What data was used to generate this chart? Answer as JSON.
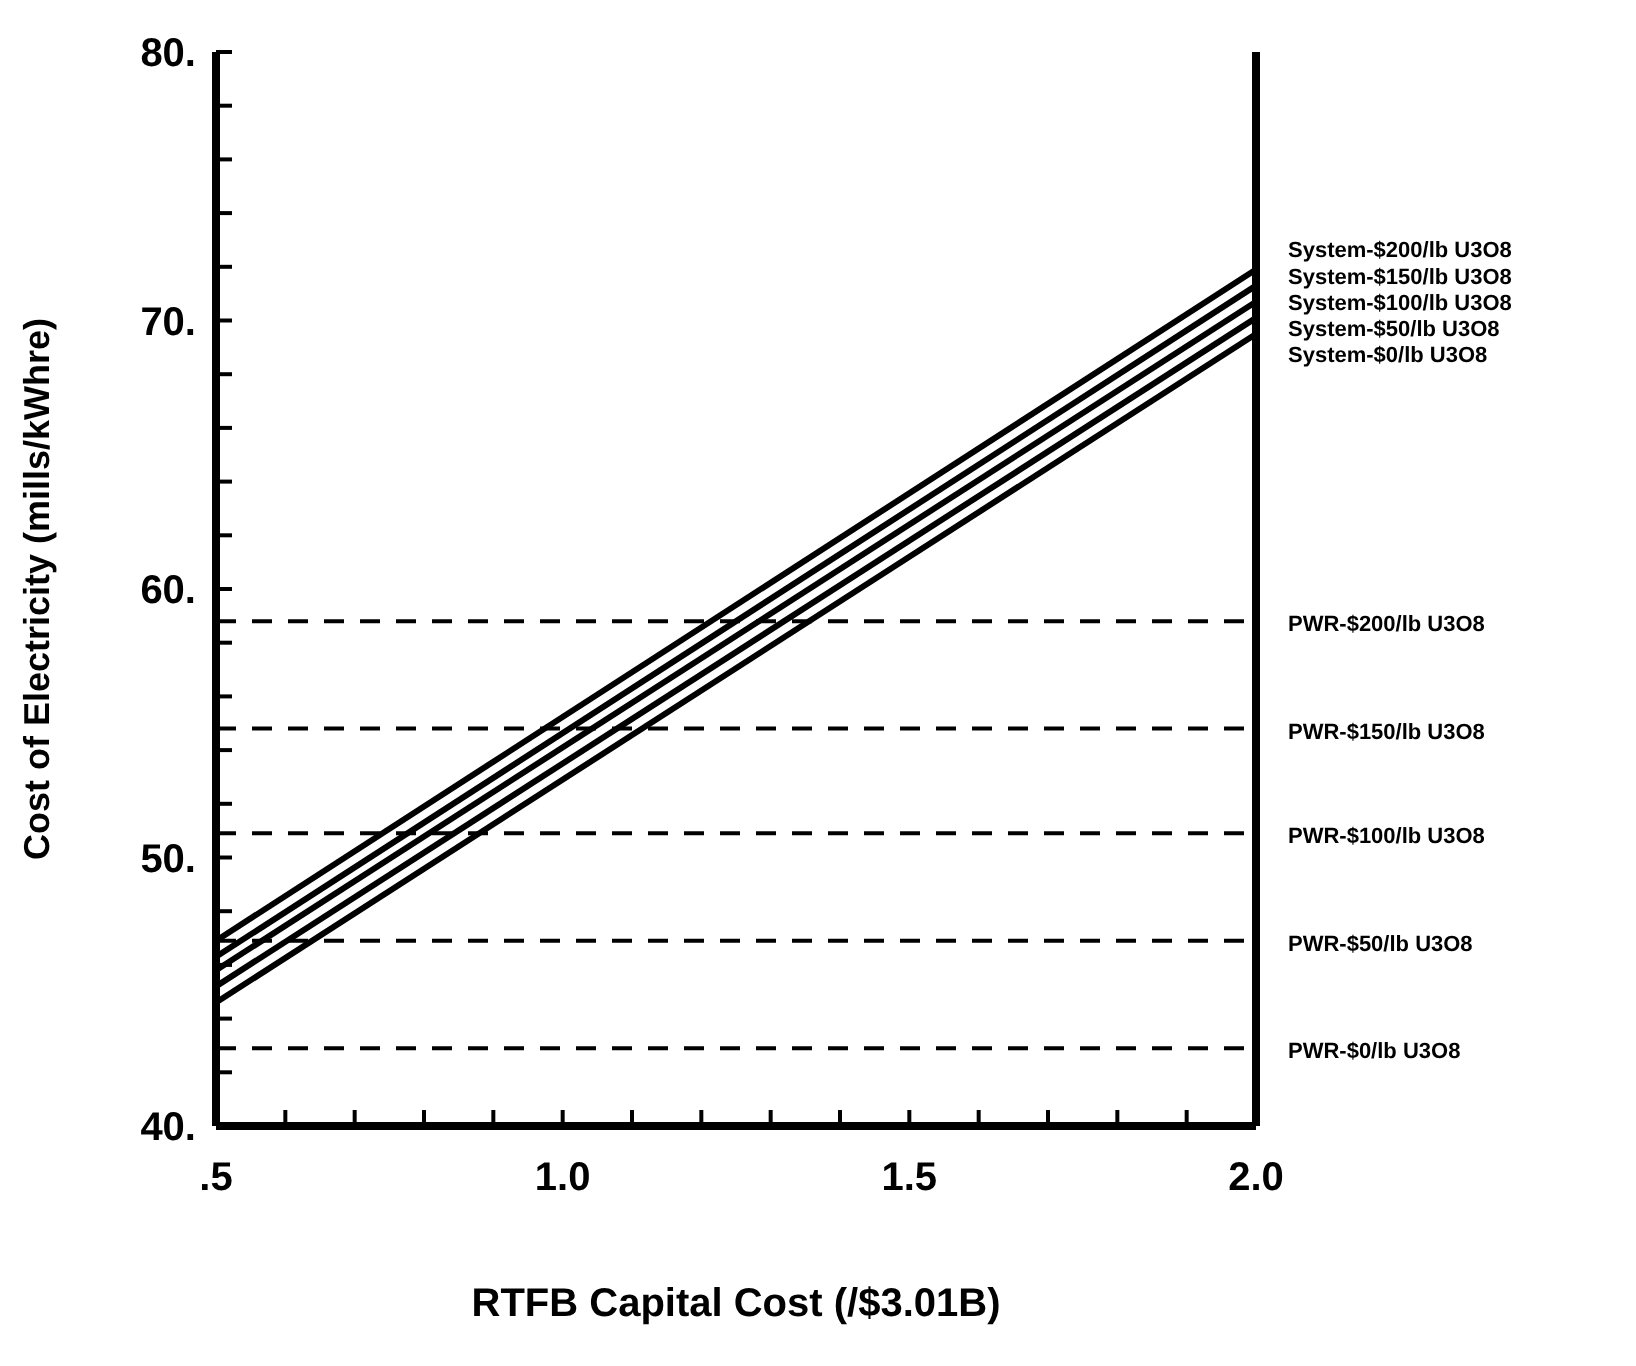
{
  "chart_data": {
    "type": "line",
    "xlabel": "RTFB Capital Cost (/$3.01B)",
    "ylabel": "Cost of Electricity (mills/kWhre)",
    "xlim": [
      0.5,
      2.0
    ],
    "xticks": [
      {
        "value": 0.5,
        "label": ".5"
      },
      {
        "value": 0.6,
        "label": null
      },
      {
        "value": 0.7,
        "label": null
      },
      {
        "value": 0.8,
        "label": null
      },
      {
        "value": 0.9,
        "label": null
      },
      {
        "value": 1.0,
        "label": "1.0"
      },
      {
        "value": 1.1,
        "label": null
      },
      {
        "value": 1.2,
        "label": null
      },
      {
        "value": 1.3,
        "label": null
      },
      {
        "value": 1.4,
        "label": null
      },
      {
        "value": 1.5,
        "label": "1.5"
      },
      {
        "value": 1.6,
        "label": null
      },
      {
        "value": 1.7,
        "label": null
      },
      {
        "value": 1.8,
        "label": null
      },
      {
        "value": 1.9,
        "label": null
      },
      {
        "value": 2.0,
        "label": "2.0"
      }
    ],
    "ylim": [
      40,
      80
    ],
    "yticks": [
      {
        "value": 40,
        "label": "40."
      },
      {
        "value": 42,
        "label": null
      },
      {
        "value": 44,
        "label": null
      },
      {
        "value": 46,
        "label": null
      },
      {
        "value": 48,
        "label": null
      },
      {
        "value": 50,
        "label": "50."
      },
      {
        "value": 52,
        "label": null
      },
      {
        "value": 54,
        "label": null
      },
      {
        "value": 56,
        "label": null
      },
      {
        "value": 58,
        "label": null
      },
      {
        "value": 60,
        "label": "60."
      },
      {
        "value": 62,
        "label": null
      },
      {
        "value": 64,
        "label": null
      },
      {
        "value": 66,
        "label": null
      },
      {
        "value": 68,
        "label": null
      },
      {
        "value": 70,
        "label": "70."
      },
      {
        "value": 72,
        "label": null
      },
      {
        "value": 74,
        "label": null
      },
      {
        "value": 76,
        "label": null
      },
      {
        "value": 78,
        "label": null
      },
      {
        "value": 80,
        "label": "80."
      }
    ],
    "x": [
      0.5,
      2.0
    ],
    "grid": false,
    "legend": false,
    "marker": "none",
    "line_style": "solid",
    "series": [
      {
        "name": "System-$200/lb U3O8",
        "color": "#000000",
        "values": [
          46.9,
          71.9
        ]
      },
      {
        "name": "System-$150/lb U3O8",
        "color": "#000000",
        "values": [
          46.3,
          71.3
        ]
      },
      {
        "name": "System-$100/lb U3O8",
        "color": "#000000",
        "values": [
          45.8,
          70.7
        ]
      },
      {
        "name": "System-$50/lb U3O8",
        "color": "#000000",
        "values": [
          45.2,
          70.1
        ]
      },
      {
        "name": "System-$0/lb U3O8",
        "color": "#000000",
        "values": [
          44.6,
          69.5
        ]
      }
    ],
    "ref_lines": [
      {
        "axis": "y",
        "value": 58.8,
        "label": "PWR-$200/lb U3O8",
        "color": "#000000",
        "line_style": "dashed"
      },
      {
        "axis": "y",
        "value": 54.8,
        "label": "PWR-$150/lb U3O8",
        "color": "#000000",
        "line_style": "dashed"
      },
      {
        "axis": "y",
        "value": 50.9,
        "label": "PWR-$100/lb U3O8",
        "color": "#000000",
        "line_style": "dashed"
      },
      {
        "axis": "y",
        "value": 46.9,
        "label": "PWR-$50/lb U3O8",
        "color": "#000000",
        "line_style": "dashed"
      },
      {
        "axis": "y",
        "value": 42.9,
        "label": "PWR-$0/lb U3O8",
        "color": "#000000",
        "line_style": "dashed"
      }
    ]
  }
}
